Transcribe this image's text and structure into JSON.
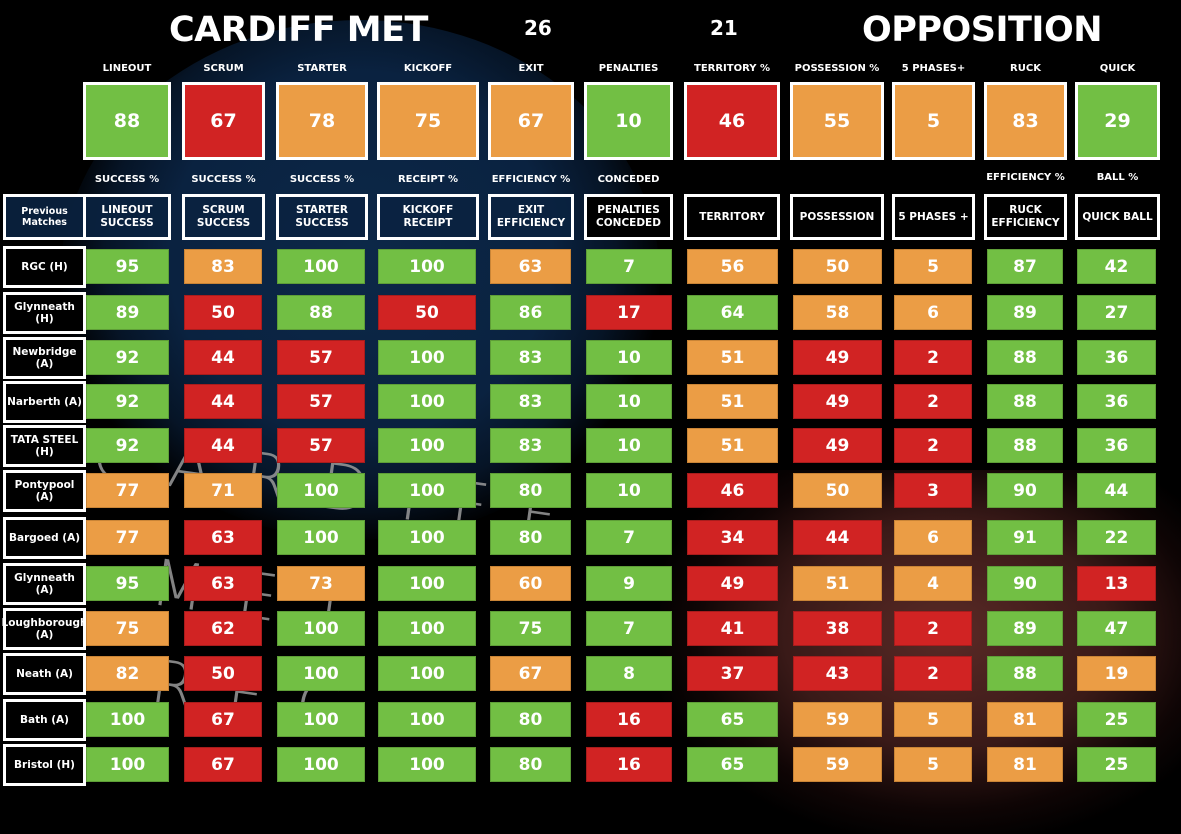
{
  "header": {
    "home_team": "CARDIFF MET",
    "home_score": "26",
    "away_score": "21",
    "away_team": "OPPOSITION"
  },
  "colors": {
    "green": "#72bf44",
    "amber": "#eb9d45",
    "red": "#d12323",
    "navy": "#0a2240",
    "background": "#000000"
  },
  "summary": [
    {
      "label": "LINEOUT",
      "value": "88",
      "status": "g",
      "sublabel": "SUCCESS %"
    },
    {
      "label": "SCRUM",
      "value": "67",
      "status": "r",
      "sublabel": "SUCCESS %"
    },
    {
      "label": "STARTER",
      "value": "78",
      "status": "o",
      "sublabel": "SUCCESS %"
    },
    {
      "label": "KICKOFF",
      "value": "75",
      "status": "o",
      "sublabel": "RECEIPT %"
    },
    {
      "label": "EXIT",
      "value": "67",
      "status": "o",
      "sublabel": "EFFICIENCY %"
    },
    {
      "label": "PENALTIES",
      "value": "10",
      "status": "g",
      "sublabel": "CONCEDED"
    },
    {
      "label": "TERRITORY %",
      "value": "46",
      "status": "r",
      "sublabel": ""
    },
    {
      "label": "POSSESSION %",
      "value": "55",
      "status": "o",
      "sublabel": ""
    },
    {
      "label": "5 PHASES+",
      "value": "5",
      "status": "o",
      "sublabel": ""
    },
    {
      "label": "RUCK",
      "value": "83",
      "status": "o",
      "sublabel": "EFFICIENCY %"
    },
    {
      "label": "QUICK",
      "value": "29",
      "status": "g",
      "sublabel": "BALL %"
    }
  ],
  "table": {
    "corner_label": "Previous Matches",
    "columns": [
      "LINEOUT SUCCESS",
      "SCRUM SUCCESS",
      "STARTER SUCCESS",
      "KICKOFF RECEIPT",
      "EXIT EFFICIENCY",
      "PENALTIES CONCEDED",
      "TERRITORY",
      "POSSESSION",
      "5 PHASES +",
      "RUCK EFFICIENCY",
      "QUICK BALL"
    ],
    "rows": [
      {
        "match": "RGC (H)",
        "values": [
          "95",
          "83",
          "100",
          "100",
          "63",
          "7",
          "56",
          "50",
          "5",
          "87",
          "42"
        ],
        "status": [
          "g",
          "o",
          "g",
          "g",
          "o",
          "g",
          "o",
          "o",
          "o",
          "g",
          "g"
        ]
      },
      {
        "match": "Glynneath (H)",
        "values": [
          "89",
          "50",
          "88",
          "50",
          "86",
          "17",
          "64",
          "58",
          "6",
          "89",
          "27"
        ],
        "status": [
          "g",
          "r",
          "g",
          "r",
          "g",
          "r",
          "g",
          "o",
          "o",
          "g",
          "g"
        ]
      },
      {
        "match": "Newbridge (A)",
        "values": [
          "92",
          "44",
          "57",
          "100",
          "83",
          "10",
          "51",
          "49",
          "2",
          "88",
          "36"
        ],
        "status": [
          "g",
          "r",
          "r",
          "g",
          "g",
          "g",
          "o",
          "r",
          "r",
          "g",
          "g"
        ]
      },
      {
        "match": "Narberth (A)",
        "values": [
          "92",
          "44",
          "57",
          "100",
          "83",
          "10",
          "51",
          "49",
          "2",
          "88",
          "36"
        ],
        "status": [
          "g",
          "r",
          "r",
          "g",
          "g",
          "g",
          "o",
          "r",
          "r",
          "g",
          "g"
        ]
      },
      {
        "match": "TATA STEEL (H)",
        "values": [
          "92",
          "44",
          "57",
          "100",
          "83",
          "10",
          "51",
          "49",
          "2",
          "88",
          "36"
        ],
        "status": [
          "g",
          "r",
          "r",
          "g",
          "g",
          "g",
          "o",
          "r",
          "r",
          "g",
          "g"
        ]
      },
      {
        "match": "Pontypool (A)",
        "values": [
          "77",
          "71",
          "100",
          "100",
          "80",
          "10",
          "46",
          "50",
          "3",
          "90",
          "44"
        ],
        "status": [
          "o",
          "o",
          "g",
          "g",
          "g",
          "g",
          "r",
          "o",
          "r",
          "g",
          "g"
        ]
      },
      {
        "match": "Bargoed (A)",
        "values": [
          "77",
          "63",
          "100",
          "100",
          "80",
          "7",
          "34",
          "44",
          "6",
          "91",
          "22"
        ],
        "status": [
          "o",
          "r",
          "g",
          "g",
          "g",
          "g",
          "r",
          "r",
          "o",
          "g",
          "g"
        ]
      },
      {
        "match": "Glynneath (A)",
        "values": [
          "95",
          "63",
          "73",
          "100",
          "60",
          "9",
          "49",
          "51",
          "4",
          "90",
          "13"
        ],
        "status": [
          "g",
          "r",
          "o",
          "g",
          "o",
          "g",
          "r",
          "o",
          "o",
          "g",
          "r"
        ]
      },
      {
        "match": "Loughborough (A)",
        "values": [
          "75",
          "62",
          "100",
          "100",
          "75",
          "7",
          "41",
          "38",
          "2",
          "89",
          "47"
        ],
        "status": [
          "o",
          "r",
          "g",
          "g",
          "g",
          "g",
          "r",
          "r",
          "r",
          "g",
          "g"
        ]
      },
      {
        "match": "Neath (A)",
        "values": [
          "82",
          "50",
          "100",
          "100",
          "67",
          "8",
          "37",
          "43",
          "2",
          "88",
          "19"
        ],
        "status": [
          "o",
          "r",
          "g",
          "g",
          "o",
          "g",
          "r",
          "r",
          "r",
          "g",
          "o"
        ]
      },
      {
        "match": "Bath (A)",
        "values": [
          "100",
          "67",
          "100",
          "100",
          "80",
          "16",
          "65",
          "59",
          "5",
          "81",
          "25"
        ],
        "status": [
          "g",
          "r",
          "g",
          "g",
          "g",
          "r",
          "g",
          "o",
          "o",
          "o",
          "g"
        ]
      },
      {
        "match": "Bristol (H)",
        "values": [
          "100",
          "67",
          "100",
          "100",
          "80",
          "16",
          "65",
          "59",
          "5",
          "81",
          "25"
        ],
        "status": [
          "g",
          "r",
          "g",
          "g",
          "g",
          "r",
          "g",
          "o",
          "o",
          "o",
          "g"
        ]
      }
    ]
  },
  "watermark": "CARDIFF MET RFC"
}
